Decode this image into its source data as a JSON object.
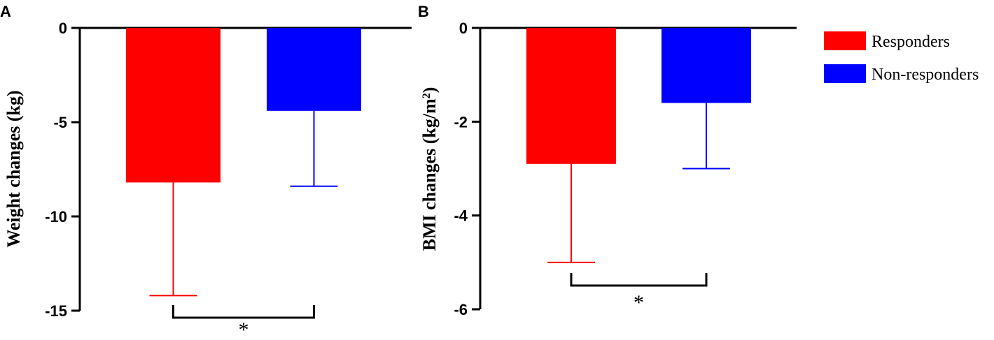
{
  "legend": {
    "position": "top-right",
    "items": [
      {
        "label": "Responders",
        "color": "#ff0000"
      },
      {
        "label": "Non-responders",
        "color": "#0000ff"
      }
    ]
  },
  "chart_data": [
    {
      "panel": "A",
      "type": "bar",
      "ylabel": "Weight changes (kg)",
      "ylim": [
        -15,
        0
      ],
      "yticks": [
        "0",
        "-5",
        "-10",
        "-15"
      ],
      "grid": false,
      "categories": [
        "Responders",
        "Non-responders"
      ],
      "series": [
        {
          "name": "Responders",
          "value": -8.2,
          "error": 6.0,
          "color": "#ff0000"
        },
        {
          "name": "Non-responders",
          "value": -4.4,
          "error": 4.0,
          "color": "#0000ff"
        }
      ],
      "significance": "*"
    },
    {
      "panel": "B",
      "type": "bar",
      "ylabel": "BMI changes (kg/m²)",
      "ylim": [
        -6,
        0
      ],
      "yticks": [
        "0",
        "-2",
        "-4",
        "-6"
      ],
      "grid": false,
      "categories": [
        "Responders",
        "Non-responders"
      ],
      "series": [
        {
          "name": "Responders",
          "value": -2.9,
          "error": 2.1,
          "color": "#ff0000"
        },
        {
          "name": "Non-responders",
          "value": -1.6,
          "error": 1.4,
          "color": "#0000ff"
        }
      ],
      "significance": "*"
    }
  ]
}
